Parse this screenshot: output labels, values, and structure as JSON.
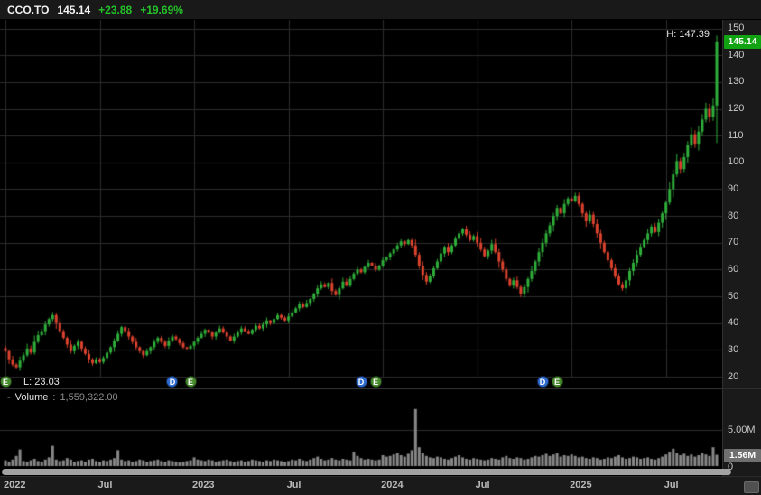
{
  "header": {
    "symbol": "CCO.TO",
    "price": "145.14",
    "change": "+23.88",
    "change_pct": "+19.69%"
  },
  "volume_panel": {
    "collapse_label": "-",
    "title": "Volume",
    "separator": ":",
    "value": "1,559,322.00"
  },
  "colors": {
    "bg": "#000000",
    "grid": "#2c2c2c",
    "separator": "#2e2e2e",
    "up": "#2fae3a",
    "down": "#dc432e",
    "volume_bar": "#888888",
    "accent_green": "#12a312",
    "badge_gray": "#6f6f6f",
    "change_green": "#25c32a",
    "event_dividend": "#2e6bd0",
    "event_earnings": "#478a2e"
  },
  "chart_data": {
    "type": "candlestick",
    "symbol": "CCO.TO",
    "y_range": [
      20,
      150
    ],
    "y_ticks": [
      150,
      140,
      130,
      120,
      110,
      100,
      90,
      80,
      70,
      60,
      50,
      40,
      30,
      20
    ],
    "x_ticks": [
      {
        "i": 0,
        "label": "2022"
      },
      {
        "i": 26,
        "label": "Jul"
      },
      {
        "i": 52,
        "label": "2023"
      },
      {
        "i": 78,
        "label": "Jul"
      },
      {
        "i": 104,
        "label": "2024"
      },
      {
        "i": 130,
        "label": "Jul"
      },
      {
        "i": 156,
        "label": "2025"
      },
      {
        "i": 182,
        "label": "Jul"
      }
    ],
    "high": {
      "text": "H: 147.39",
      "value": 147.39,
      "i": 196
    },
    "low": {
      "text": "L: 23.03",
      "value": 23.03,
      "i": 3
    },
    "last": {
      "price": 145.14,
      "change": 23.88,
      "change_pct": 19.69,
      "volume": 1559322
    },
    "volume_axis": {
      "gridline_label": "5.00M",
      "gridline_value": 5,
      "last_label": "1.56M",
      "last_value": 1.56,
      "zero_label": "0"
    },
    "events": [
      {
        "i": 0,
        "label": "E"
      },
      {
        "i": 46,
        "label": "D"
      },
      {
        "i": 51,
        "label": "E"
      },
      {
        "i": 98,
        "label": "D"
      },
      {
        "i": 102,
        "label": "E"
      },
      {
        "i": 148,
        "label": "D"
      },
      {
        "i": 152,
        "label": "E"
      }
    ],
    "closes": [
      29.5,
      26.5,
      24.5,
      23.5,
      26.0,
      28.0,
      30.5,
      29.0,
      33.0,
      35.5,
      37.0,
      39.5,
      41.5,
      43.0,
      40.0,
      37.0,
      34.5,
      32.0,
      29.5,
      31.5,
      33.0,
      30.5,
      28.5,
      26.5,
      25.0,
      26.5,
      25.5,
      27.0,
      29.0,
      31.0,
      33.5,
      36.0,
      38.5,
      37.0,
      35.0,
      33.0,
      31.0,
      29.5,
      28.0,
      29.5,
      31.0,
      33.0,
      34.5,
      33.0,
      31.5,
      33.5,
      35.0,
      34.0,
      32.5,
      31.0,
      30.5,
      31.5,
      33.0,
      34.5,
      36.0,
      37.5,
      36.5,
      35.0,
      36.5,
      38.0,
      36.5,
      35.0,
      33.5,
      35.0,
      36.5,
      38.0,
      37.0,
      36.0,
      37.5,
      39.0,
      38.0,
      39.5,
      41.0,
      40.0,
      41.5,
      43.0,
      42.0,
      41.0,
      42.5,
      44.0,
      45.5,
      47.0,
      46.0,
      47.5,
      49.0,
      51.0,
      53.0,
      54.5,
      53.5,
      55.0,
      52.0,
      50.5,
      53.0,
      55.5,
      54.0,
      56.5,
      58.5,
      60.0,
      59.0,
      61.0,
      62.5,
      61.5,
      60.0,
      61.5,
      63.5,
      64.5,
      66.0,
      67.5,
      69.0,
      70.5,
      69.5,
      71.0,
      69.0,
      65.5,
      61.5,
      58.0,
      55.5,
      57.5,
      60.5,
      63.0,
      66.0,
      68.5,
      66.5,
      69.0,
      71.5,
      73.5,
      75.0,
      73.0,
      71.0,
      72.5,
      70.0,
      67.5,
      65.0,
      67.0,
      69.5,
      66.5,
      63.0,
      60.0,
      56.5,
      54.0,
      56.0,
      53.5,
      51.0,
      53.5,
      56.5,
      59.5,
      63.0,
      66.5,
      70.0,
      73.5,
      76.5,
      80.0,
      83.0,
      81.0,
      84.5,
      86.5,
      85.5,
      87.5,
      84.5,
      81.0,
      78.0,
      80.5,
      77.0,
      73.5,
      70.0,
      66.5,
      63.5,
      60.5,
      57.5,
      54.5,
      53.0,
      56.0,
      59.5,
      62.5,
      65.5,
      68.5,
      71.0,
      73.5,
      76.0,
      74.0,
      77.5,
      81.0,
      85.0,
      90.0,
      95.5,
      100.5,
      97.5,
      102.0,
      106.5,
      110.5,
      107.0,
      111.5,
      116.0,
      120.0,
      117.0,
      121.26,
      145.14
    ],
    "volumes_millions": [
      0.8,
      0.6,
      0.9,
      1.4,
      2.3,
      0.7,
      0.6,
      0.8,
      1.0,
      0.7,
      0.6,
      0.9,
      1.2,
      2.8,
      0.9,
      0.7,
      0.8,
      1.1,
      0.9,
      0.6,
      0.7,
      0.8,
      0.6,
      0.9,
      1.0,
      0.7,
      0.6,
      0.8,
      0.7,
      0.9,
      1.1,
      2.2,
      0.9,
      0.7,
      0.8,
      0.6,
      0.7,
      0.9,
      0.8,
      0.6,
      0.7,
      0.8,
      0.9,
      0.7,
      0.6,
      0.8,
      0.7,
      0.6,
      0.5,
      0.6,
      0.7,
      0.8,
      1.2,
      0.9,
      0.8,
      0.7,
      0.9,
      0.8,
      0.6,
      0.7,
      0.8,
      0.9,
      0.7,
      0.6,
      0.7,
      0.8,
      0.6,
      0.7,
      0.9,
      0.8,
      0.7,
      0.6,
      0.8,
      0.7,
      0.9,
      0.8,
      0.7,
      0.6,
      0.7,
      0.9,
      0.8,
      1.0,
      0.8,
      0.7,
      0.9,
      1.1,
      1.3,
      1.0,
      0.8,
      0.9,
      1.1,
      0.9,
      0.8,
      1.0,
      0.9,
      0.8,
      2.0,
      1.4,
      1.1,
      0.9,
      1.0,
      0.9,
      0.8,
      0.9,
      1.5,
      1.3,
      1.4,
      1.6,
      1.8,
      1.5,
      1.3,
      1.7,
      2.2,
      7.9,
      2.6,
      1.8,
      1.4,
      1.2,
      1.1,
      1.3,
      1.2,
      1.0,
      0.9,
      1.1,
      1.3,
      1.5,
      1.2,
      1.0,
      0.9,
      1.1,
      1.0,
      0.9,
      0.8,
      0.9,
      1.1,
      1.0,
      0.9,
      1.2,
      1.4,
      1.1,
      1.0,
      1.2,
      1.1,
      0.9,
      1.0,
      1.2,
      1.4,
      1.3,
      1.5,
      1.7,
      1.4,
      1.6,
      1.8,
      1.3,
      1.5,
      1.4,
      1.6,
      1.4,
      1.2,
      1.3,
      1.1,
      1.0,
      1.2,
      1.1,
      0.9,
      1.0,
      1.2,
      1.1,
      1.3,
      1.5,
      1.2,
      1.0,
      1.1,
      1.3,
      1.2,
      1.0,
      1.1,
      1.2,
      1.0,
      0.9,
      1.1,
      1.3,
      1.6,
      2.0,
      2.4,
      1.8,
      1.5,
      1.7,
      1.4,
      1.6,
      1.3,
      1.5,
      1.8,
      1.6,
      1.4,
      2.6,
      1.56
    ]
  }
}
